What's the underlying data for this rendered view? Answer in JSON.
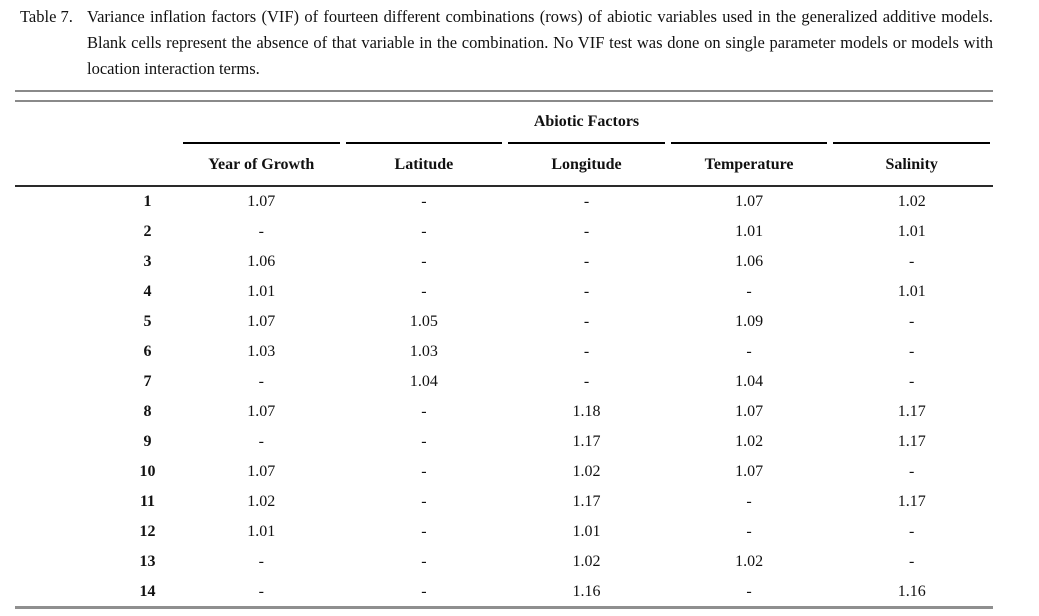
{
  "caption": {
    "label": "Table 7.",
    "text": "Variance inflation factors (VIF) of fourteen different combinations (rows) of abiotic variables used in the generalized additive models. Blank cells represent the absence of that variable in the combination. No VIF test was done on single parameter models or models with location interaction terms."
  },
  "table": {
    "group_header": "Abiotic Factors",
    "columns": [
      "Year of Growth",
      "Latitude",
      "Longitude",
      "Temperature",
      "Salinity"
    ],
    "blank_marker": "-",
    "rows": [
      {
        "label": "1",
        "cells": [
          "1.07",
          "-",
          "-",
          "1.07",
          "1.02"
        ]
      },
      {
        "label": "2",
        "cells": [
          "-",
          "-",
          "-",
          "1.01",
          "1.01"
        ]
      },
      {
        "label": "3",
        "cells": [
          "1.06",
          "-",
          "-",
          "1.06",
          "-"
        ]
      },
      {
        "label": "4",
        "cells": [
          "1.01",
          "-",
          "-",
          "-",
          "1.01"
        ]
      },
      {
        "label": "5",
        "cells": [
          "1.07",
          "1.05",
          "-",
          "1.09",
          "-"
        ]
      },
      {
        "label": "6",
        "cells": [
          "1.03",
          "1.03",
          "-",
          "-",
          "-"
        ]
      },
      {
        "label": "7",
        "cells": [
          "-",
          "1.04",
          "-",
          "1.04",
          "-"
        ]
      },
      {
        "label": "8",
        "cells": [
          "1.07",
          "-",
          "1.18",
          "1.07",
          "1.17"
        ]
      },
      {
        "label": "9",
        "cells": [
          "-",
          "-",
          "1.17",
          "1.02",
          "1.17"
        ]
      },
      {
        "label": "10",
        "cells": [
          "1.07",
          "-",
          "1.02",
          "1.07",
          "-"
        ]
      },
      {
        "label": "11",
        "cells": [
          "1.02",
          "-",
          "1.17",
          "-",
          "1.17"
        ]
      },
      {
        "label": "12",
        "cells": [
          "1.01",
          "-",
          "1.01",
          "-",
          "-"
        ]
      },
      {
        "label": "13",
        "cells": [
          "-",
          "-",
          "1.02",
          "1.02",
          "-"
        ]
      },
      {
        "label": "14",
        "cells": [
          "-",
          "-",
          "1.16",
          "-",
          "1.16"
        ]
      }
    ]
  },
  "colors": {
    "text": "#111111",
    "outer_rule": "#8a8a8a",
    "inner_rule": "#000000"
  }
}
